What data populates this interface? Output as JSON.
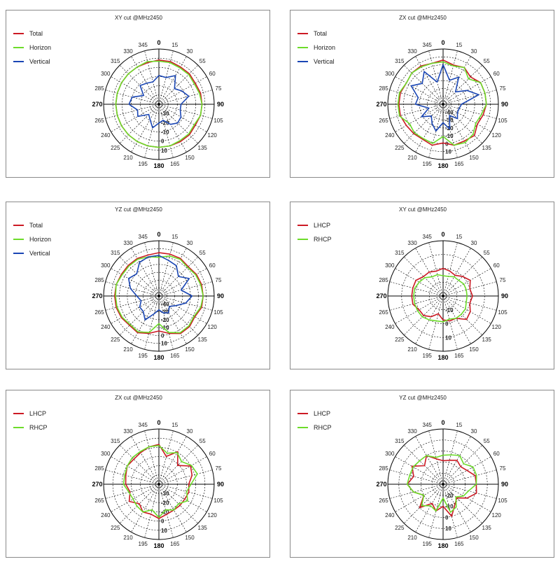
{
  "chart_data": [
    {
      "type": "polar-line",
      "title": "XY cut @MHz2450",
      "angle_labels": [
        "0",
        "15",
        "30",
        "55",
        "60",
        "75",
        "90",
        "105",
        "120",
        "135",
        "150",
        "165",
        "180",
        "195",
        "210",
        "225",
        "240",
        "265",
        "270",
        "285",
        "300",
        "315",
        "330",
        "345"
      ],
      "ring_labels": [
        "-30",
        "-20",
        "-10",
        "0",
        "10"
      ],
      "rlim": [
        -40,
        10
      ],
      "series": [
        {
          "name": "Total",
          "color": "#cc1a24",
          "values": [
            0,
            0,
            -1,
            -1,
            -2,
            -1,
            -1,
            -1,
            -2,
            -1,
            -1,
            -1,
            -1,
            -1,
            -1,
            -1,
            -1,
            -1,
            -1,
            -1,
            -1,
            -1,
            -1,
            -1
          ]
        },
        {
          "name": "Horizon",
          "color": "#6ddc2a",
          "values": [
            -1,
            -1,
            -2,
            -2,
            -3,
            -2,
            -1,
            -1,
            -3,
            -2,
            -2,
            -1,
            -1,
            -1,
            -1,
            -1,
            -1,
            -1,
            -1,
            -1,
            -1,
            -1,
            -1,
            0
          ]
        },
        {
          "name": "Vertical",
          "color": "#1a46b4",
          "values": [
            -14,
            -15,
            -10,
            -20,
            -16,
            -12,
            -20,
            -20,
            -17,
            -16,
            -19,
            -25,
            -23,
            -18,
            -24,
            -27,
            -18,
            -20,
            -13,
            -15,
            -24,
            -16,
            -18,
            -19
          ]
        }
      ]
    },
    {
      "type": "polar-line",
      "title": "ZX cut @MHz2450",
      "angle_labels": [
        "0",
        "15",
        "30",
        "55",
        "60",
        "75",
        "90",
        "105",
        "120",
        "135",
        "150",
        "165",
        "180",
        "195",
        "210",
        "225",
        "240",
        "265",
        "270",
        "285",
        "300",
        "315",
        "330",
        "345"
      ],
      "ring_labels": [
        "-40",
        "-30",
        "-20",
        "-10",
        "0",
        "10"
      ],
      "rlim": [
        -50,
        10
      ],
      "series": [
        {
          "name": "Total",
          "color": "#cc1a24",
          "values": [
            -2,
            -6,
            -4,
            -8,
            -3,
            -3,
            -3,
            -5,
            -7,
            -2,
            -4,
            -4,
            -8,
            -4,
            -6,
            -5,
            -4,
            -2,
            -2,
            -2,
            -4,
            -2,
            -2,
            -4
          ]
        },
        {
          "name": "Horizon",
          "color": "#6ddc2a",
          "values": [
            -4,
            -7,
            -4,
            -11,
            -3,
            -3,
            -3,
            -7,
            -9,
            -4,
            -2,
            -4,
            -15,
            -6,
            -7,
            -6,
            -8,
            -1,
            -1,
            -1,
            -4,
            -2,
            -3,
            -4
          ]
        },
        {
          "name": "Vertical",
          "color": "#1a46b4",
          "values": [
            -7,
            -23,
            -16,
            -31,
            -20,
            -10,
            -30,
            -32,
            -32,
            -28,
            -36,
            -22,
            -30,
            -20,
            -26,
            -32,
            -23,
            -34,
            -20,
            -22,
            -10,
            -18,
            -9,
            -25
          ]
        }
      ]
    },
    {
      "type": "polar-line",
      "title": "YZ cut @MHz2450",
      "angle_labels": [
        "0",
        "15",
        "30",
        "55",
        "60",
        "75",
        "90",
        "105",
        "120",
        "135",
        "150",
        "165",
        "180",
        "195",
        "210",
        "225",
        "240",
        "265",
        "270",
        "285",
        "300",
        "315",
        "330",
        "345"
      ],
      "ring_labels": [
        "-40",
        "-30",
        "-20",
        "-10",
        "0",
        "10"
      ],
      "rlim": [
        -50,
        10
      ],
      "series": [
        {
          "name": "Total",
          "color": "#cc1a24",
          "values": [
            -3,
            -3,
            -3,
            -5,
            -3,
            -2,
            -2,
            -2,
            -5,
            -3,
            -3,
            -8,
            -12,
            -8,
            -4,
            -5,
            -3,
            -2,
            -2,
            -2,
            -3,
            -3,
            -3,
            -4
          ]
        },
        {
          "name": "Horizon",
          "color": "#6ddc2a",
          "values": [
            -8,
            -5,
            -4,
            -6,
            -4,
            -3,
            -2,
            -3,
            -6,
            -4,
            -4,
            -9,
            -20,
            -9,
            -5,
            -6,
            -4,
            -3,
            -3,
            -2,
            -4,
            -4,
            -4,
            -6
          ]
        },
        {
          "name": "Vertical",
          "color": "#1a46b4",
          "values": [
            -6,
            -10,
            -12,
            -20,
            -12,
            -25,
            -14,
            -20,
            -29,
            -34,
            -29,
            -31,
            -35,
            -30,
            -20,
            -26,
            -26,
            -30,
            -26,
            -18,
            -12,
            -16,
            -8,
            -6
          ]
        }
      ]
    },
    {
      "type": "polar-line",
      "title": "XY cut @MHz2450",
      "angle_labels": [
        "0",
        "15",
        "30",
        "55",
        "60",
        "75",
        "90",
        "105",
        "120",
        "135",
        "150",
        "165",
        "180",
        "195",
        "210",
        "225",
        "240",
        "265",
        "270",
        "285",
        "300",
        "315",
        "330",
        "345"
      ],
      "ring_labels": [
        "-10",
        "0",
        "10"
      ],
      "rlim": [
        -20,
        10
      ],
      "series": [
        {
          "name": "LHCP",
          "color": "#cc1a24",
          "values": [
            -5,
            -6,
            -7,
            -5,
            -3,
            -5,
            -4,
            -5,
            -3,
            -2,
            -6,
            -6,
            -7,
            -10,
            -7,
            -5,
            -5,
            -3,
            -3,
            -3,
            -3,
            -5,
            -5,
            -6
          ]
        },
        {
          "name": "RHCP",
          "color": "#6ddc2a",
          "values": [
            -9,
            -9,
            -8,
            -8,
            -7,
            -7,
            -7,
            -7,
            -6,
            -6,
            -6,
            -7,
            -6,
            -6,
            -5,
            -4,
            -4,
            -4,
            -4,
            -4,
            -5,
            -6,
            -8,
            -8
          ]
        }
      ]
    },
    {
      "type": "polar-line",
      "title": "ZX cut @MHz2450",
      "angle_labels": [
        "0",
        "15",
        "30",
        "55",
        "60",
        "75",
        "90",
        "105",
        "120",
        "135",
        "150",
        "165",
        "180",
        "195",
        "210",
        "225",
        "240",
        "265",
        "270",
        "285",
        "300",
        "315",
        "330",
        "345"
      ],
      "ring_labels": [
        "-30",
        "-20",
        "-10",
        "0",
        "10"
      ],
      "rlim": [
        -40,
        10
      ],
      "series": [
        {
          "name": "LHCP",
          "color": "#cc1a24",
          "values": [
            -4,
            -14,
            -6,
            -16,
            -7,
            -9,
            -13,
            -12,
            -13,
            -13,
            -13,
            -12,
            -9,
            -12,
            -11,
            -15,
            -9,
            -13,
            -10,
            -9,
            -7,
            -8,
            -7,
            -5
          ]
        },
        {
          "name": "RHCP",
          "color": "#6ddc2a",
          "values": [
            -5,
            -11,
            -7,
            -11,
            -6,
            -4,
            -11,
            -14,
            -10,
            -15,
            -13,
            -16,
            -10,
            -16,
            -11,
            -12,
            -13,
            -12,
            -8,
            -8,
            -7,
            -6,
            -6,
            -5
          ]
        }
      ]
    },
    {
      "type": "polar-line",
      "title": "YZ cut @MHz2450",
      "angle_labels": [
        "0",
        "15",
        "30",
        "55",
        "60",
        "75",
        "90",
        "105",
        "120",
        "135",
        "150",
        "165",
        "180",
        "195",
        "210",
        "225",
        "240",
        "265",
        "270",
        "285",
        "300",
        "315",
        "330",
        "345"
      ],
      "ring_labels": [
        "-20",
        "-10",
        "0",
        "10"
      ],
      "rlim": [
        -30,
        10
      ],
      "series": [
        {
          "name": "LHCP",
          "color": "#cc1a24",
          "values": [
            -13,
            -12,
            -10,
            -12,
            -10,
            -6,
            -6,
            -5,
            -10,
            -16,
            -13,
            -6,
            -14,
            -10,
            -14,
            -6,
            -14,
            -8,
            -4,
            -8,
            -4,
            -11,
            -6,
            -11
          ]
        },
        {
          "name": "RHCP",
          "color": "#6ddc2a",
          "values": [
            -9,
            -8,
            -6,
            -9,
            -5,
            -5,
            -6,
            -11,
            -13,
            -17,
            -11,
            -9,
            -20,
            -10,
            -12,
            -8,
            -14,
            -8,
            -4,
            -5,
            -5,
            -6,
            -6,
            -10
          ]
        }
      ]
    }
  ]
}
